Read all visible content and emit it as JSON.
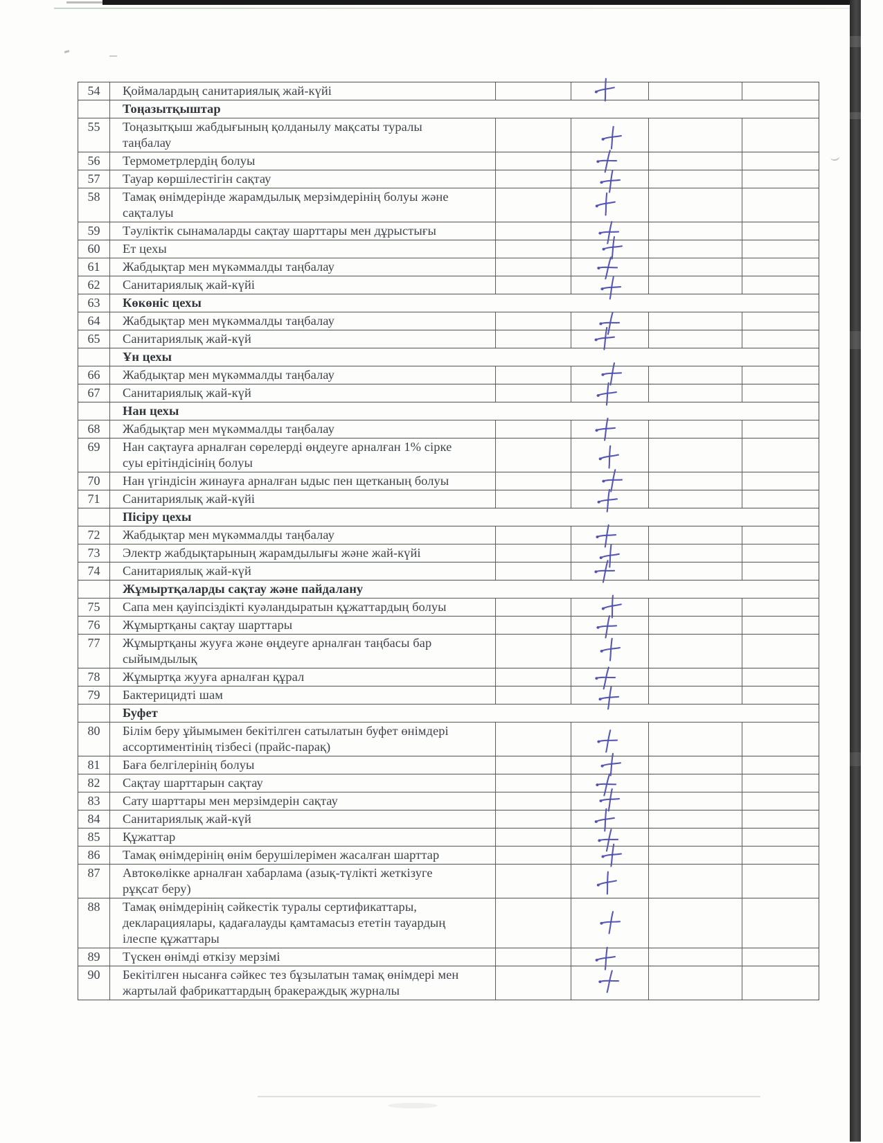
{
  "colors": {
    "ink": "#4e50b0",
    "paper": "#fdfdfb",
    "table_line": "#4d524f"
  },
  "mark_glyph": "+",
  "table": {
    "column_count": 6,
    "rows": [
      {
        "num": "54",
        "type": "item",
        "checked": true,
        "text": "Қоймалардың санитариялық жай-күйі"
      },
      {
        "num": "",
        "type": "section",
        "checked": false,
        "text": "Тоңазытқыштар"
      },
      {
        "num": "55",
        "type": "item",
        "checked": true,
        "text": "Тоңазытқыш жабдығының қолданылу мақсаты туралы таңбалау"
      },
      {
        "num": "56",
        "type": "item",
        "checked": true,
        "text": "Термометрлердің болуы"
      },
      {
        "num": "57",
        "type": "item",
        "checked": true,
        "text": "Тауар көршілестігін сақтау"
      },
      {
        "num": "58",
        "type": "item",
        "checked": true,
        "text": "Тамақ өнімдерінде жарамдылық мерзімдерінің болуы және сақталуы"
      },
      {
        "num": "59",
        "type": "item",
        "checked": true,
        "text": "Тәуліктік сынамаларды сақтау шарттары мен дұрыстығы"
      },
      {
        "num": "60",
        "type": "item",
        "checked": true,
        "text": "Ет цехы"
      },
      {
        "num": "61",
        "type": "item",
        "checked": true,
        "text": "Жабдықтар мен мүкәммалды таңбалау"
      },
      {
        "num": "62",
        "type": "item",
        "checked": true,
        "text": "Санитариялық жай-күйі"
      },
      {
        "num": "63",
        "type": "section",
        "checked": false,
        "text": "Көкөніс цехы"
      },
      {
        "num": "64",
        "type": "item",
        "checked": true,
        "text": "Жабдықтар мен мүкәммалды таңбалау"
      },
      {
        "num": "65",
        "type": "item",
        "checked": true,
        "text": "Санитариялық жай-күй"
      },
      {
        "num": "",
        "type": "section",
        "checked": false,
        "text": "Ұн цехы"
      },
      {
        "num": "66",
        "type": "item",
        "checked": true,
        "text": "Жабдықтар мен мүкәммалды таңбалау"
      },
      {
        "num": "67",
        "type": "item",
        "checked": true,
        "text": "Санитариялық жай-күй"
      },
      {
        "num": "",
        "type": "section",
        "checked": false,
        "text": "Нан цехы"
      },
      {
        "num": "68",
        "type": "item",
        "checked": true,
        "text": "Жабдықтар мен мүкәммалды таңбалау"
      },
      {
        "num": "69",
        "type": "item",
        "checked": true,
        "text": "Нан сақтауға арналған сөрелерді өңдеуге арналған 1% сірке суы ерітіндісінің болуы"
      },
      {
        "num": "70",
        "type": "item",
        "checked": true,
        "text": "Нан үгіндісін жинауға арналған ыдыс пен щетканың болуы"
      },
      {
        "num": "71",
        "type": "item",
        "checked": true,
        "text": "Санитариялық жай-күйі"
      },
      {
        "num": "",
        "type": "section",
        "checked": false,
        "text": "Пісіру цехы"
      },
      {
        "num": "72",
        "type": "item",
        "checked": true,
        "text": "Жабдықтар мен мүкәммалды таңбалау"
      },
      {
        "num": "73",
        "type": "item",
        "checked": true,
        "text": "Электр жабдықтарының жарамдылығы және жай-күйі"
      },
      {
        "num": "74",
        "type": "item",
        "checked": true,
        "text": "Санитариялық жай-күй"
      },
      {
        "num": "",
        "type": "section",
        "checked": false,
        "text": "Жұмыртқаларды сақтау және пайдалану"
      },
      {
        "num": "75",
        "type": "item",
        "checked": true,
        "text": "Сапа мен қауіпсіздікті куәландыратын құжаттардың болуы"
      },
      {
        "num": "76",
        "type": "item",
        "checked": true,
        "text": "Жұмыртқаны сақтау шарттары"
      },
      {
        "num": "77",
        "type": "item",
        "checked": true,
        "text": "Жұмыртқаны жууға және өңдеуге арналған таңбасы бар сыйымдылық"
      },
      {
        "num": "78",
        "type": "item",
        "checked": true,
        "text": "Жұмыртқа жууға арналған құрал"
      },
      {
        "num": "79",
        "type": "item",
        "checked": true,
        "text": "Бактерицидті шам"
      },
      {
        "num": "",
        "type": "section",
        "checked": false,
        "text": "Буфет"
      },
      {
        "num": "80",
        "type": "item",
        "checked": true,
        "text": "Білім беру ұйымымен бекітілген сатылатын буфет өнімдері ассортиментінің тізбесі (прайс-парақ)"
      },
      {
        "num": "81",
        "type": "item",
        "checked": true,
        "text": "Баға белгілерінің болуы"
      },
      {
        "num": "82",
        "type": "item",
        "checked": true,
        "text": "Сақтау шарттарын сақтау"
      },
      {
        "num": "83",
        "type": "item",
        "checked": true,
        "text": "Сату шарттары мен мерзімдерін сақтау"
      },
      {
        "num": "84",
        "type": "item",
        "checked": true,
        "text": "Санитариялық жай-күй"
      },
      {
        "num": "85",
        "type": "item",
        "checked": true,
        "text": "Құжаттар"
      },
      {
        "num": "86",
        "type": "item",
        "checked": true,
        "text": "Тамақ өнімдерінің өнім берушілерімен  жасалған шарттар"
      },
      {
        "num": "87",
        "type": "item",
        "checked": true,
        "text": "Автокөлікке арналған хабарлама (азық-түлікті жеткізуге рұқсат беру)"
      },
      {
        "num": "88",
        "type": "item",
        "checked": true,
        "text": "Тамақ өнімдерінің сәйкестік туралы сертификаттары, декларациялары,  қадағалауды қамтамасыз ететін тауардың ілеспе құжаттары"
      },
      {
        "num": "89",
        "type": "item",
        "checked": true,
        "text": "Түскен өнімді өткізу мерзімі"
      },
      {
        "num": "90",
        "type": "item",
        "checked": true,
        "text": "Бекітілген нысанға сәйкес тез бұзылатын тамақ өнімдері мен жартылай фабрикаттардың бракераждық журналы"
      }
    ]
  }
}
